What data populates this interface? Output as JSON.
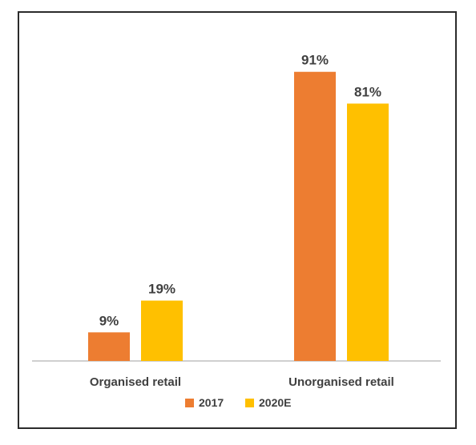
{
  "chart_data": {
    "type": "bar",
    "categories": [
      "Organised retail",
      "Unorganised retail"
    ],
    "series": [
      {
        "name": "2017",
        "values": [
          9,
          91
        ],
        "labels": [
          "9%",
          "91%"
        ],
        "color": "#ED7D31"
      },
      {
        "name": "2020E",
        "values": [
          19,
          81
        ],
        "labels": [
          "19%",
          "81%"
        ],
        "color": "#FFC000"
      }
    ],
    "ylim": [
      0,
      100
    ],
    "grid": false,
    "legend_position": "bottom"
  }
}
